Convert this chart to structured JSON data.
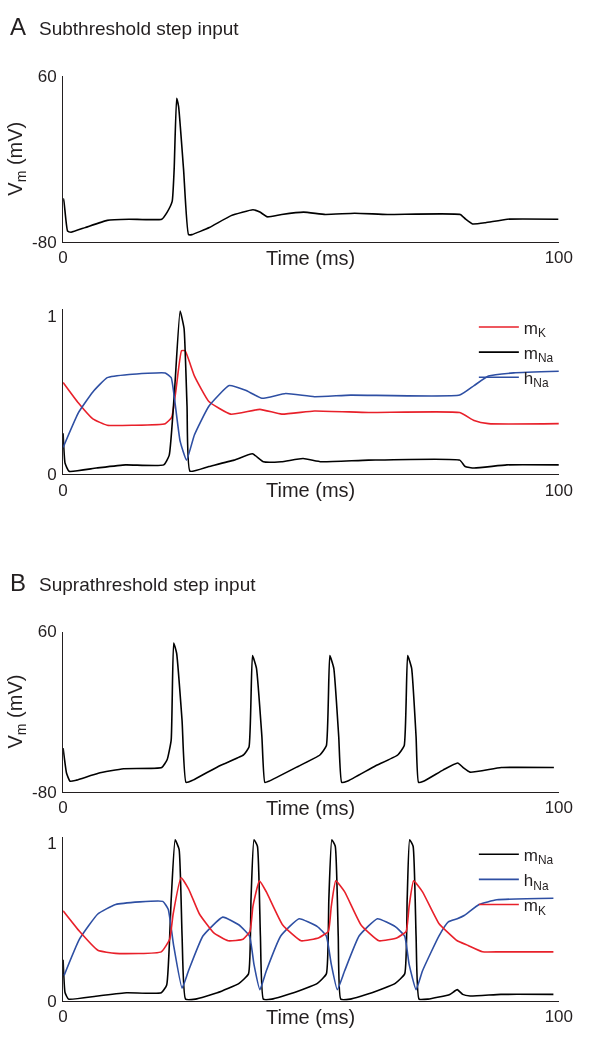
{
  "chart_data": [
    {
      "type": "line",
      "annotations": [
        "A"
      ],
      "title": "Subthreshold step input",
      "xlabel": "Time (ms)",
      "ylabel": "V$_{m}$ (mV)",
      "xlim": [
        0,
        100
      ],
      "ylim": [
        -80,
        60
      ],
      "xticks": [
        0,
        100
      ],
      "yticks": [
        -80,
        60
      ],
      "series": [
        {
          "color": "#000000",
          "x": [
            0,
            0.1,
            0.9,
            1.6,
            4.5,
            8.9,
            13.3,
            19.9,
            21.0,
            22.0,
            22.4,
            22.9,
            23.3,
            24.3,
            25.3,
            26.0,
            29.5,
            33.9,
            38.3,
            39.7,
            41.2,
            44.1,
            48.5,
            52.9,
            58.8,
            65.4,
            80.1,
            81.2,
            82.6,
            85.2,
            89.6,
            99.9
          ],
          "values": [
            -44,
            -44,
            -71,
            -72,
            -68,
            -62,
            -61,
            -61,
            -55,
            -46,
            -19,
            41,
            34,
            -19,
            -74,
            -74,
            -68,
            -58,
            -53,
            -55,
            -59,
            -57,
            -55,
            -57,
            -56,
            -57,
            -57,
            -61,
            -65,
            -64,
            -61,
            -61
          ]
        }
      ]
    },
    {
      "type": "line",
      "xlabel": "Time (ms)",
      "xlim": [
        0,
        100
      ],
      "ylim": [
        0,
        1.04
      ],
      "xticks": [
        0,
        100
      ],
      "yticks": [
        0,
        1
      ],
      "legend": "top right",
      "series": [
        {
          "name": "m$_{K}$",
          "color": "#e8202a",
          "x": [
            0,
            3.1,
            6.0,
            8.9,
            14.0,
            20.6,
            21.9,
            22.8,
            23.9,
            24.6,
            26.5,
            29.4,
            33.8,
            39.7,
            44.1,
            50.7,
            61.6,
            80,
            82.9,
            85.8,
            100
          ],
          "values": [
            0.58,
            0.45,
            0.35,
            0.31,
            0.31,
            0.32,
            0.36,
            0.54,
            0.78,
            0.78,
            0.62,
            0.46,
            0.38,
            0.41,
            0.38,
            0.4,
            0.39,
            0.39,
            0.34,
            0.32,
            0.32
          ]
        },
        {
          "name": "m$_{Na}$",
          "color": "#000000",
          "x": [
            0,
            0.4,
            1.2,
            6.7,
            12.6,
            20.3,
            21.4,
            22.5,
            23.6,
            24.4,
            25.0,
            25.6,
            29.4,
            34.5,
            38.2,
            40.4,
            44.0,
            48.4,
            52.1,
            61.6,
            80,
            81.1,
            82.9,
            89.5,
            100
          ],
          "values": [
            0.26,
            0.07,
            0.02,
            0.04,
            0.06,
            0.06,
            0.12,
            0.54,
            1.03,
            0.92,
            0.43,
            0.02,
            0.05,
            0.09,
            0.13,
            0.08,
            0.08,
            0.1,
            0.08,
            0.09,
            0.09,
            0.05,
            0.04,
            0.06,
            0.06
          ]
        },
        {
          "name": "h$_{Na}$",
          "color": "#2e4fa3",
          "x": [
            0,
            3.1,
            6.0,
            8.9,
            13.3,
            20.6,
            21.8,
            22.5,
            23.6,
            24.9,
            26.5,
            29.4,
            33.5,
            36.8,
            40.1,
            44.9,
            50.7,
            58.0,
            80,
            82.9,
            85.8,
            90.9,
            100
          ],
          "values": [
            0.17,
            0.39,
            0.52,
            0.61,
            0.63,
            0.64,
            0.61,
            0.47,
            0.21,
            0.09,
            0.25,
            0.43,
            0.56,
            0.53,
            0.48,
            0.51,
            0.49,
            0.5,
            0.5,
            0.56,
            0.62,
            0.64,
            0.65
          ]
        }
      ]
    },
    {
      "type": "line",
      "annotations": [
        "B"
      ],
      "title": "Suprathreshold step input",
      "xlabel": "Time (ms)",
      "ylabel": "V$_{m}$ (mV)",
      "xlim": [
        0,
        100
      ],
      "ylim": [
        -80,
        60
      ],
      "xticks": [
        0,
        100
      ],
      "yticks": [
        -80,
        60
      ],
      "series": [
        {
          "color": "#000000",
          "x": [
            0,
            0.7,
            1.4,
            2.7,
            7.1,
            12.2,
            19.9,
            21.0,
            21.8,
            22.3,
            22.9,
            24.0,
            24.8,
            26.2,
            31.3,
            36.4,
            37.5,
            38.2,
            39.0,
            40.1,
            40.7,
            41.5,
            47.4,
            51.8,
            53.1,
            53.8,
            54.6,
            55.6,
            56.2,
            57.3,
            62.8,
            67.5,
            68.8,
            69.5,
            70.3,
            71.2,
            71.7,
            72.7,
            76.7,
            79.6,
            80.7,
            82.1,
            88.4,
            99
          ],
          "values": [
            -42,
            -64,
            -71,
            -70,
            -64,
            -60,
            -59,
            -52,
            -35,
            50,
            41,
            -18,
            -72,
            -70,
            -58,
            -48,
            -41,
            39,
            28,
            -32,
            -72,
            -71,
            -58,
            -48,
            -40,
            39,
            28,
            -32,
            -72,
            -71,
            -58,
            -48,
            -40,
            39,
            28,
            -32,
            -72,
            -71,
            -61,
            -55,
            -59,
            -63,
            -59,
            -59
          ]
        }
      ]
    },
    {
      "type": "line",
      "xlabel": "Time (ms)",
      "xlim": [
        0,
        100
      ],
      "ylim": [
        0,
        1.04
      ],
      "xticks": [
        0,
        100
      ],
      "yticks": [
        0,
        1
      ],
      "legend": "top right",
      "series": [
        {
          "name": "m$_{Na}$",
          "color": "#000000",
          "x": [
            0,
            0.4,
            1.1,
            7.0,
            12.8,
            19.8,
            20.9,
            21.8,
            22.6,
            23.4,
            24.0,
            24.7,
            26.7,
            31.1,
            35.5,
            37.4,
            37.9,
            38.5,
            39.2,
            39.8,
            40.4,
            42.1,
            46.5,
            51.3,
            53.1,
            53.6,
            54.2,
            54.9,
            55.5,
            56.0,
            57.9,
            62.3,
            67.0,
            68.9,
            69.4,
            69.9,
            70.6,
            71.2,
            71.8,
            73.6,
            78.0,
            79.5,
            80.6,
            82.1,
            88.3,
            98.9
          ],
          "values": [
            0.26,
            0.05,
            0.01,
            0.03,
            0.05,
            0.05,
            0.1,
            0.64,
            1.02,
            0.96,
            0.41,
            0.01,
            0.01,
            0.05,
            0.11,
            0.17,
            0.64,
            1.02,
            0.98,
            0.41,
            0.01,
            0.01,
            0.05,
            0.11,
            0.17,
            0.64,
            1.02,
            0.98,
            0.41,
            0.01,
            0.01,
            0.05,
            0.11,
            0.17,
            0.64,
            1.02,
            0.98,
            0.41,
            0.01,
            0.01,
            0.04,
            0.07,
            0.04,
            0.03,
            0.04,
            0.04
          ]
        },
        {
          "name": "h$_{Na}$",
          "color": "#2e4fa3",
          "x": [
            0.2,
            3.3,
            7.0,
            10.6,
            20.1,
            21.2,
            22.3,
            24.0,
            25.3,
            28.2,
            32.2,
            35.5,
            37.6,
            38.5,
            39.7,
            41.0,
            43.9,
            47.6,
            51.3,
            53.1,
            54.1,
            55.3,
            56.8,
            59.7,
            63.4,
            67.0,
            68.9,
            69.8,
            71.2,
            72.5,
            75.8,
            77.7,
            79.5,
            80.9,
            83.9,
            87.5,
            98.9
          ],
          "values": [
            0.16,
            0.39,
            0.55,
            0.61,
            0.63,
            0.58,
            0.35,
            0.08,
            0.19,
            0.41,
            0.53,
            0.48,
            0.41,
            0.23,
            0.07,
            0.19,
            0.41,
            0.52,
            0.47,
            0.41,
            0.23,
            0.07,
            0.19,
            0.41,
            0.52,
            0.47,
            0.41,
            0.23,
            0.07,
            0.19,
            0.41,
            0.5,
            0.52,
            0.54,
            0.61,
            0.64,
            0.65
          ]
        },
        {
          "name": "m$_{K}$",
          "color": "#e8202a",
          "x": [
            0,
            3.3,
            7.0,
            10.6,
            19.8,
            21.5,
            22.2,
            23.8,
            25.3,
            27.5,
            30.4,
            33.3,
            36.3,
            37.7,
            38.3,
            39.6,
            41.0,
            44.3,
            48.0,
            51.6,
            53.5,
            54.1,
            55.0,
            56.8,
            60.1,
            63.7,
            67.4,
            69.2,
            69.8,
            70.7,
            72.5,
            75.8,
            79.5,
            81.7,
            84.6,
            88.3,
            98.9
          ],
          "values": [
            0.57,
            0.44,
            0.32,
            0.3,
            0.31,
            0.39,
            0.55,
            0.78,
            0.71,
            0.55,
            0.43,
            0.38,
            0.39,
            0.44,
            0.6,
            0.76,
            0.69,
            0.48,
            0.38,
            0.4,
            0.44,
            0.6,
            0.76,
            0.69,
            0.48,
            0.38,
            0.4,
            0.44,
            0.6,
            0.76,
            0.69,
            0.49,
            0.38,
            0.35,
            0.31,
            0.31,
            0.31
          ]
        }
      ]
    }
  ]
}
